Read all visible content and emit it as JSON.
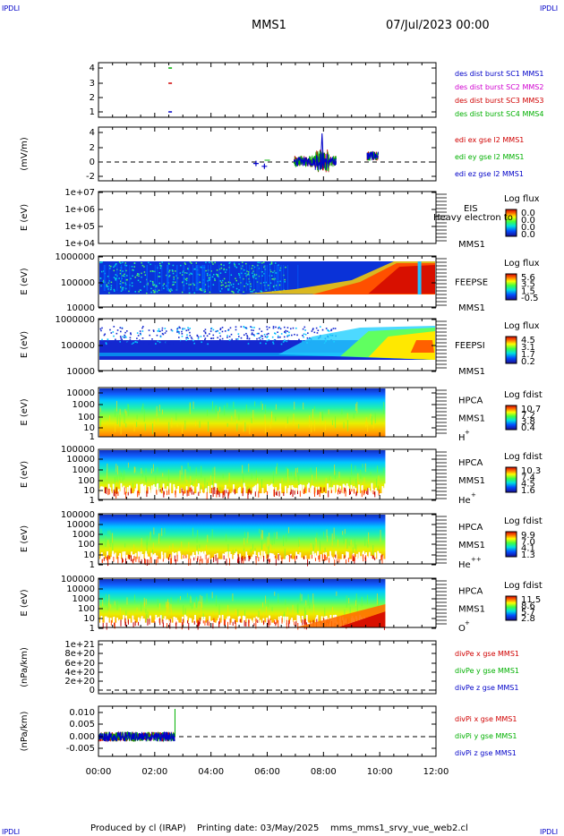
{
  "header": {
    "corner_tl": "IPDLI",
    "corner_tr": "IPDLI",
    "corner_bl": "IPDLI",
    "corner_br": "IPDLI",
    "spacecraft": "MMS1",
    "date": "07/Jul/2023 00:00"
  },
  "footer": {
    "produced_by": "Produced by cl (IRAP)",
    "printing_date": "Printing date: 03/May/2025",
    "script_name": "mms_mms1_srvy_vue_web2.cl"
  },
  "colors": {
    "mms1": "#0000c8",
    "mms2": "#d000d0",
    "mms3": "#d00000",
    "mms4": "#00b000",
    "panel_border": "#000000"
  },
  "chart_data": {
    "type": "heatmap",
    "x_axis": {
      "label": "",
      "range": [
        "00:00",
        "12:00"
      ],
      "ticks": [
        "00:00",
        "02:00",
        "04:00",
        "06:00",
        "08:00",
        "10:00",
        "12:00"
      ]
    },
    "panels": [
      {
        "id": "burst",
        "type": "scatter",
        "ylabel": "",
        "yticks": [
          "4",
          "3",
          "2",
          "1"
        ],
        "legend": [
          {
            "text": "des dist burst SC1 MMS1",
            "color": "mms1"
          },
          {
            "text": "des dist burst SC2 MMS2",
            "color": "mms2"
          },
          {
            "text": "des dist burst SC3 MMS3",
            "color": "mms3"
          },
          {
            "text": "des dist burst SC4 MMS4",
            "color": "mms4"
          }
        ],
        "points": [
          {
            "x_hours": 2.55,
            "y": 4,
            "color": "mms4"
          },
          {
            "x_hours": 2.55,
            "y": 3,
            "color": "mms3"
          },
          {
            "x_hours": 2.55,
            "y": 1,
            "color": "mms1"
          }
        ]
      },
      {
        "id": "edi",
        "type": "line",
        "ylabel": "(mV/m)",
        "yticks": [
          "4",
          "2",
          "0",
          "-2"
        ],
        "ylim": [
          -2.5,
          4.5
        ],
        "legend": [
          {
            "text": "edi ex gse l2 MMS1",
            "color": "mms3"
          },
          {
            "text": "edi ey gse l2 MMS1",
            "color": "mms4"
          },
          {
            "text": "edi ez gse l2 MMS1",
            "color": "mms1"
          }
        ],
        "zero_line": true
      },
      {
        "id": "eis",
        "type": "heatmap",
        "ylabel": "E (eV)",
        "yticks": [
          "1e+07",
          "1e+06",
          "1e+05",
          "1e+04"
        ],
        "instrument": "EIS",
        "spacecraft": "MMS1",
        "overlay_text": "Heavy electron to",
        "colorbar_title": "Log flux",
        "colorbar_ticks": [
          "0.0",
          "0.0",
          "0.0",
          "0.0"
        ]
      },
      {
        "id": "feepse",
        "type": "heatmap",
        "ylabel": "E (eV)",
        "yticks": [
          "1000000",
          "100000",
          "10000"
        ],
        "instrument": "FEEPSE",
        "spacecraft": "MMS1",
        "colorbar_title": "Log flux",
        "colorbar_ticks": [
          "5.6",
          "3.5",
          "1.5",
          "-0.5"
        ]
      },
      {
        "id": "feepsi",
        "type": "heatmap",
        "ylabel": "E (eV)",
        "yticks": [
          "1000000",
          "100000",
          "10000"
        ],
        "instrument": "FEEPSI",
        "spacecraft": "MMS1",
        "colorbar_title": "Log flux",
        "colorbar_ticks": [
          "4.5",
          "3.1",
          "1.7",
          "0.2"
        ]
      },
      {
        "id": "hpca_h",
        "type": "heatmap",
        "ylabel": "E (eV)",
        "yticks": [
          "10000",
          "1000",
          "100",
          "10",
          "1"
        ],
        "instrument": "HPCA",
        "spacecraft": "MMS1",
        "species": "H",
        "charge": "+",
        "colorbar_title": "Log fdist",
        "colorbar_ticks": [
          "10.7",
          "7.2",
          "3.8",
          "0.4"
        ]
      },
      {
        "id": "hpca_he",
        "type": "heatmap",
        "ylabel": "E (eV)",
        "yticks": [
          "100000",
          "10000",
          "1000",
          "100",
          "10",
          "1"
        ],
        "instrument": "HPCA",
        "spacecraft": "MMS1",
        "species": "He",
        "charge": "+",
        "colorbar_title": "Log fdist",
        "colorbar_ticks": [
          "10.3",
          "7.4",
          "4.5",
          "1.6"
        ]
      },
      {
        "id": "hpca_hepp",
        "type": "heatmap",
        "ylabel": "E (eV)",
        "yticks": [
          "100000",
          "10000",
          "1000",
          "100",
          "10",
          "1"
        ],
        "instrument": "HPCA",
        "spacecraft": "MMS1",
        "species": "He",
        "charge": "++",
        "colorbar_title": "Log fdist",
        "colorbar_ticks": [
          "9.9",
          "7.0",
          "4.1",
          "1.3"
        ]
      },
      {
        "id": "hpca_o",
        "type": "heatmap",
        "ylabel": "E (eV)",
        "yticks": [
          "100000",
          "10000",
          "1000",
          "100",
          "10",
          "1"
        ],
        "instrument": "HPCA",
        "spacecraft": "MMS1",
        "species": "O",
        "charge": "+",
        "colorbar_title": "Log fdist",
        "colorbar_ticks": [
          "11.5",
          "8.6",
          "5.7",
          "2.8"
        ]
      },
      {
        "id": "divpe",
        "type": "line",
        "ylabel": "(nPa/km)",
        "yticks": [
          "1e+21",
          "8e+20",
          "6e+20",
          "4e+20",
          "2e+20",
          "0"
        ],
        "legend": [
          {
            "text": "divPe x gse MMS1",
            "color": "mms3"
          },
          {
            "text": "divPe y gse MMS1",
            "color": "mms4"
          },
          {
            "text": "divPe z gse MMS1",
            "color": "mms1"
          }
        ],
        "zero_line": true
      },
      {
        "id": "divpi",
        "type": "line",
        "ylabel": "(nPa/km)",
        "yticks": [
          "0.010",
          "0.005",
          "0.000",
          "-0.005"
        ],
        "ylim": [
          -0.0085,
          0.0125
        ],
        "legend": [
          {
            "text": "divPi x gse MMS1",
            "color": "mms3"
          },
          {
            "text": "divPi y gse MMS1",
            "color": "mms4"
          },
          {
            "text": "divPi z gse MMS1",
            "color": "mms1"
          }
        ],
        "zero_line": true
      }
    ]
  }
}
